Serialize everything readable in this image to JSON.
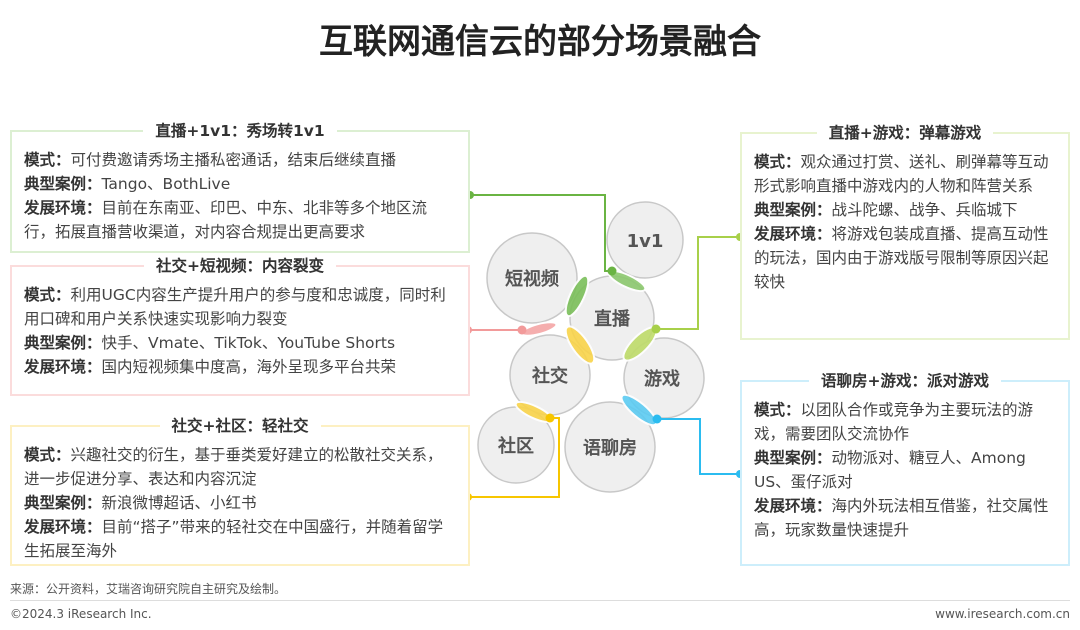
{
  "title": "互联网通信云的部分场景融合",
  "circles": [
    "1v1",
    "短视频",
    "直播",
    "社交",
    "游戏",
    "社区",
    "语聊房"
  ],
  "boxes": [
    {
      "title": "直播+1v1：秀场转1v1",
      "color": "#6ab443",
      "rows": [
        {
          "k": "模式：",
          "v": "可付费邀请秀场主播私密通话，结束后继续直播"
        },
        {
          "k": "典型案例：",
          "v": "Tango、BothLive"
        },
        {
          "k": "发展环境：",
          "v": "目前在东南亚、印巴、中东、北非等多个地区流行，拓展直播营收渠道，对内容合规提出更高要求"
        }
      ]
    },
    {
      "title": "社交+短视频：内容裂变",
      "color": "#f29a9a",
      "rows": [
        {
          "k": "模式：",
          "v": "利用UGC内容生产提升用户的参与度和忠诚度，同时利用口碑和用户关系快速实现影响力裂变"
        },
        {
          "k": "典型案例：",
          "v": "快手、Vmate、TikTok、YouTube Shorts"
        },
        {
          "k": "发展环境：",
          "v": "国内短视频集中度高，海外呈现多平台共荣"
        }
      ]
    },
    {
      "title": "社交+社区：轻社交",
      "color": "#f7c600",
      "rows": [
        {
          "k": "模式：",
          "v": "兴趣社交的衍生，基于垂类爱好建立的松散社交关系，进一步促进分享、表达和内容沉淀"
        },
        {
          "k": "典型案例：",
          "v": "新浪微博超话、小红书"
        },
        {
          "k": "发展环境：",
          "v": "目前“搭子”带来的轻社交在中国盛行，并随着留学生拓展至海外"
        }
      ]
    },
    {
      "title": "直播+游戏：弹幕游戏",
      "color": "#a8d04a",
      "rows": [
        {
          "k": "模式：",
          "v": "观众通过打赏、送礼、刷弹幕等互动形式影响直播中游戏内的人物和阵营关系"
        },
        {
          "k": "典型案例：",
          "v": "战斗陀螺、战争、兵临城下"
        },
        {
          "k": "发展环境：",
          "v": "将游戏包装成直播、提高互动性的玩法，国内由于游戏版号限制等原因兴起较快"
        }
      ]
    },
    {
      "title": "语聊房+游戏：派对游戏",
      "color": "#2bbcf0",
      "rows": [
        {
          "k": "模式：",
          "v": "以团队合作或竞争为主要玩法的游戏，需要团队交流协作"
        },
        {
          "k": "典型案例：",
          "v": "动物派对、糖豆人、Among US、蛋仔派对"
        },
        {
          "k": "发展环境：",
          "v": "海内外玩法相互借鉴，社交属性高，玩家数量快速提升"
        }
      ]
    }
  ],
  "source": "来源：公开资料，艾瑞咨询研究院自主研究及绘制。",
  "copyright": "©2024.3 iResearch Inc.",
  "website": "www.iresearch.com.cn"
}
